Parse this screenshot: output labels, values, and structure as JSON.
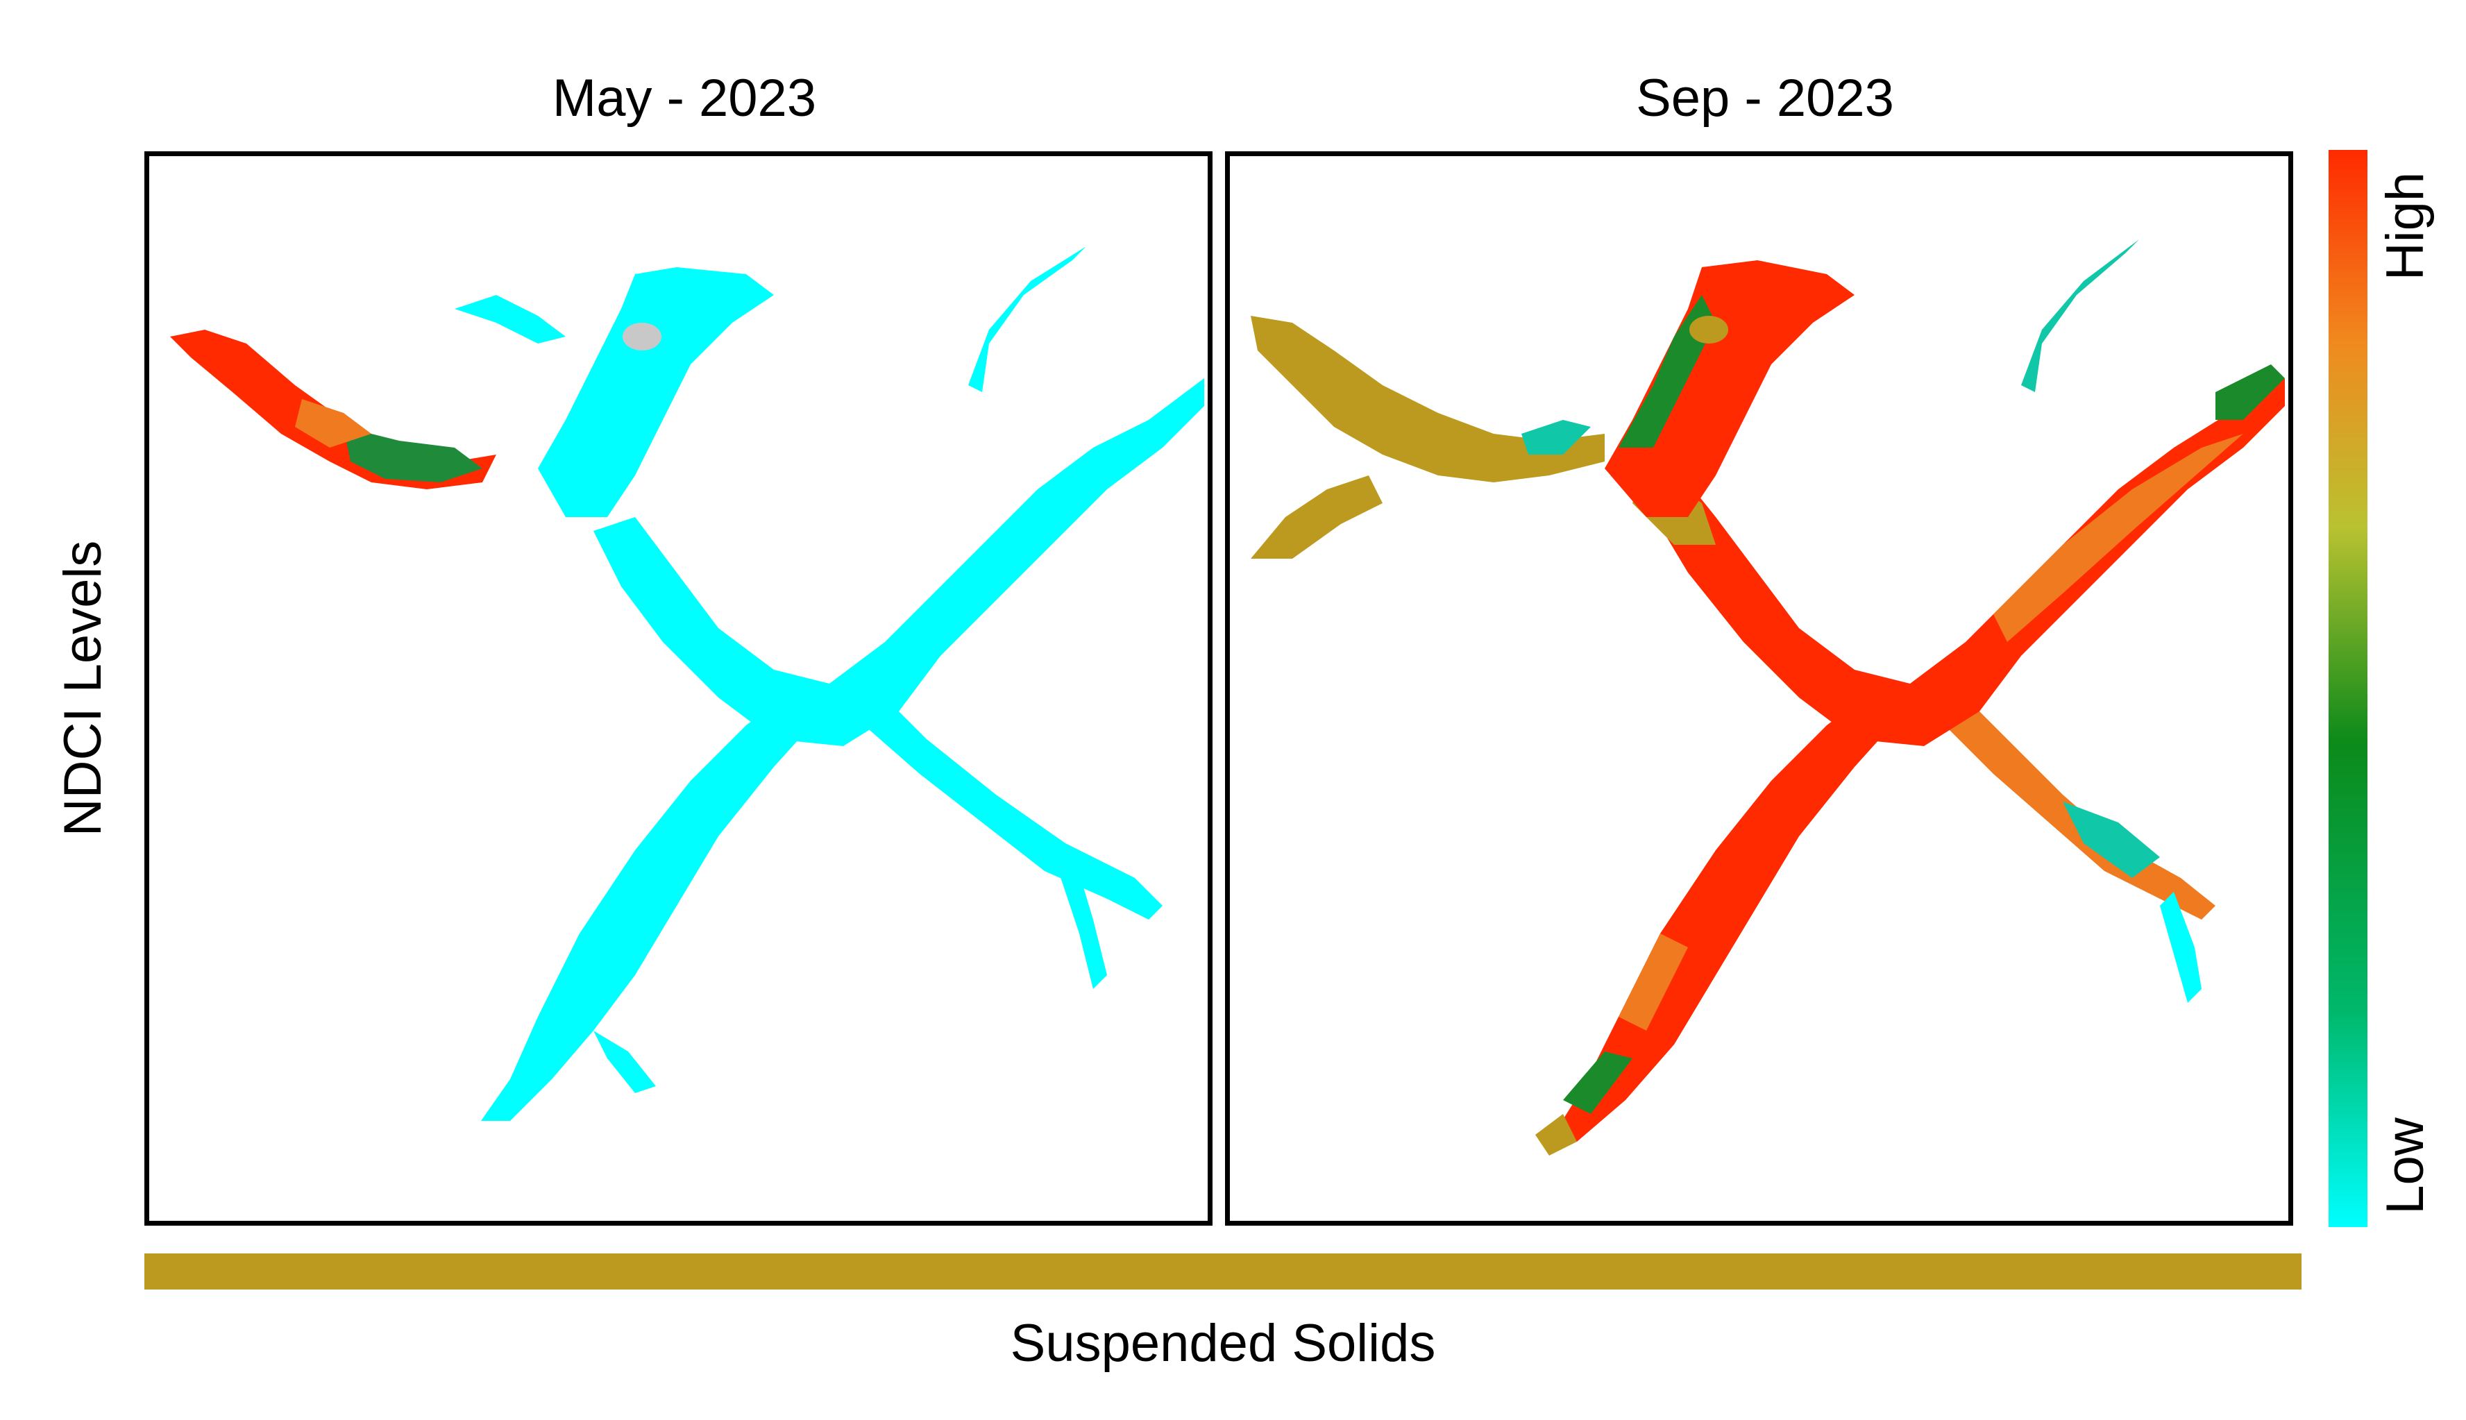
{
  "panels": {
    "left_title": "May - 2023",
    "right_title": "Sep - 2023"
  },
  "y_axis_label": "NDCI Levels",
  "colorbar": {
    "high_label": "High",
    "low_label": "Low",
    "stops": [
      "#00FFFF",
      "#00B86B",
      "#0C8A1A",
      "#B9C230",
      "#F08A1E",
      "#FF2A00"
    ]
  },
  "suspended_solids": {
    "label": "Suspended Solids",
    "color": "#BC9A1F"
  },
  "colors": {
    "low_cyan": "#00FFFF",
    "high_red": "#FF1A00",
    "orange": "#F07A20",
    "green": "#1A8A2A",
    "teal": "#10C8A8",
    "suspended_solids": "#BC9A1F",
    "frame": "#000000"
  }
}
